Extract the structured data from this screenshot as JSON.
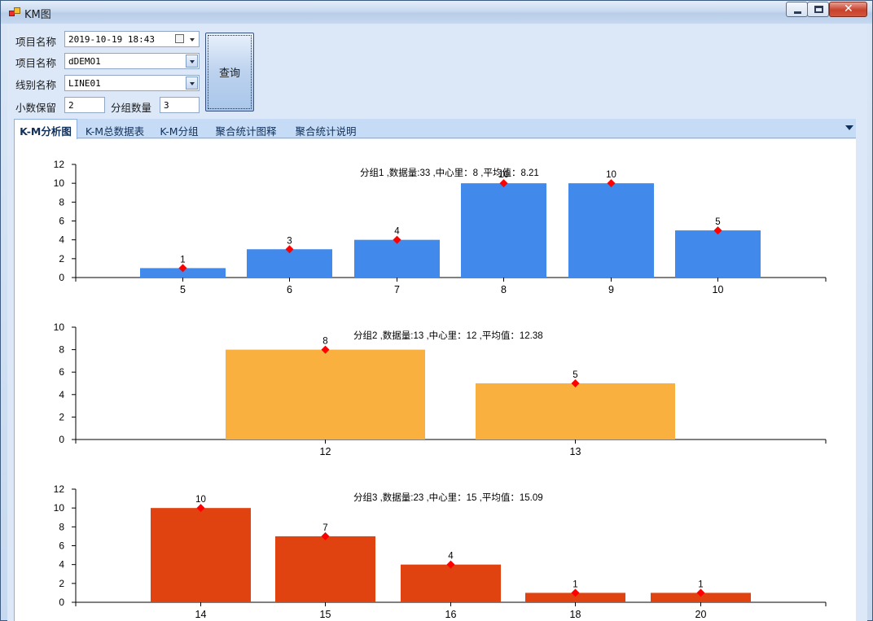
{
  "window": {
    "title": "KM图",
    "icons": {
      "app": "app-icon",
      "minimize": "minimize-icon",
      "maximize": "maximize-icon",
      "close": "close-icon"
    }
  },
  "form": {
    "date_label": "项目名称",
    "date_value": "2019-10-19 18:43",
    "project_label": "项目名称",
    "project_value": "dDEMO1",
    "line_label": "线别名称",
    "line_value": "LINE01",
    "decimals_label": "小数保留",
    "decimals_value": "2",
    "groups_label": "分组数量",
    "groups_value": "3",
    "query_button": "查询"
  },
  "tabs": [
    {
      "label": "K-M分析图",
      "active": true
    },
    {
      "label": "K-M总数据表",
      "active": false
    },
    {
      "label": "K-M分组",
      "active": false
    },
    {
      "label": "聚合统计图释",
      "active": false
    },
    {
      "label": "聚合统计说明",
      "active": false
    }
  ],
  "chart_data": [
    {
      "type": "bar",
      "annotation": "分组1 ,数据量:33 ,中心里：8 ,平均值：8.21",
      "categories": [
        "5",
        "6",
        "7",
        "8",
        "9",
        "10"
      ],
      "values": [
        1,
        3,
        4,
        10,
        10,
        5
      ],
      "ylim": [
        0,
        12
      ],
      "yticks": [
        0,
        2,
        4,
        6,
        8,
        10,
        12
      ],
      "color": "#4189ea",
      "marker_color": "#ff0000",
      "grid": false
    },
    {
      "type": "bar",
      "annotation": "分组2 ,数据量:13 ,中心里：12 ,平均值：12.38",
      "categories": [
        "12",
        "13"
      ],
      "values": [
        8,
        5
      ],
      "ylim": [
        0,
        10
      ],
      "yticks": [
        0,
        2,
        4,
        6,
        8,
        10
      ],
      "color": "#f9b03f",
      "marker_color": "#ff0000",
      "grid": false
    },
    {
      "type": "bar",
      "annotation": "分组3 ,数据量:23 ,中心里：15 ,平均值：15.09",
      "categories": [
        "14",
        "15",
        "16",
        "18",
        "20"
      ],
      "values": [
        10,
        7,
        4,
        1,
        1
      ],
      "ylim": [
        0,
        12
      ],
      "yticks": [
        0,
        2,
        4,
        6,
        8,
        10,
        12
      ],
      "color": "#e0430f",
      "marker_color": "#ff0000",
      "grid": false
    }
  ]
}
